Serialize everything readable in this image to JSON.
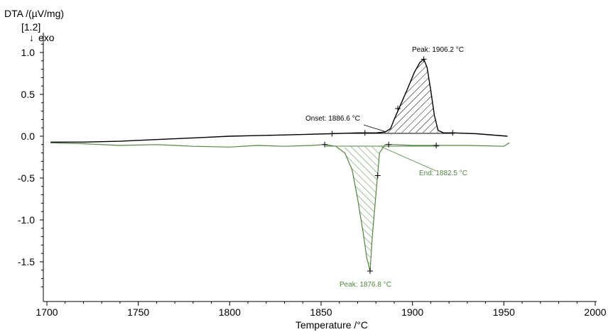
{
  "chart_data": {
    "type": "line",
    "xlabel": "Temperature /°C",
    "ylabel": "DTA /(µV/mg)",
    "y_marker": "[1.2]",
    "exo_label": "exo",
    "xlim": [
      1700,
      2000
    ],
    "ylim": [
      -1.9,
      1.2
    ],
    "x_ticks": [
      1700,
      1750,
      1800,
      1850,
      1900,
      1950,
      2000
    ],
    "x_tick_labels": [
      "1700",
      "1750",
      "1800",
      "1850",
      "1900",
      "1950",
      "2000"
    ],
    "y_ticks": [
      1.0,
      0.5,
      0.0,
      -0.5,
      -1.0,
      -1.5
    ],
    "y_tick_labels": [
      "1.0",
      "0.5",
      "0.0",
      "-0.5",
      "-1.0",
      "-1.5"
    ],
    "grid": false,
    "colors": {
      "heating": "#000000",
      "cooling": "#4e8a3a"
    },
    "series": [
      {
        "color": "#000000",
        "x": [
          1702,
          1720,
          1740,
          1760,
          1780,
          1800,
          1820,
          1840,
          1855,
          1870,
          1880,
          1885,
          1888,
          1890,
          1893,
          1897,
          1901,
          1904,
          1906.2,
          1908,
          1910,
          1912,
          1914,
          1917,
          1922,
          1935,
          1952
        ],
        "y": [
          -0.07,
          -0.07,
          -0.06,
          -0.04,
          -0.02,
          0.0,
          0.01,
          0.02,
          0.03,
          0.04,
          0.04,
          0.05,
          0.09,
          0.2,
          0.35,
          0.55,
          0.76,
          0.88,
          0.92,
          0.82,
          0.55,
          0.25,
          0.07,
          0.04,
          0.04,
          0.03,
          0.0
        ]
      },
      {
        "color": "#4e8a3a",
        "x": [
          1702,
          1720,
          1740,
          1760,
          1780,
          1800,
          1815,
          1830,
          1845,
          1852,
          1858,
          1863,
          1867,
          1870,
          1873,
          1875,
          1876.8,
          1878,
          1880,
          1882,
          1885,
          1890,
          1900,
          1913,
          1930,
          1950,
          1953
        ],
        "y": [
          -0.08,
          -0.09,
          -0.11,
          -0.1,
          -0.12,
          -0.13,
          -0.11,
          -0.12,
          -0.11,
          -0.1,
          -0.12,
          -0.2,
          -0.4,
          -0.75,
          -1.15,
          -1.45,
          -1.61,
          -1.2,
          -0.7,
          -0.2,
          -0.1,
          -0.1,
          -0.11,
          -0.11,
          -0.11,
          -0.12,
          -0.08
        ]
      }
    ],
    "annotations": [
      {
        "text": "Peak: 1906.2 °C",
        "color": "#000000"
      },
      {
        "text": "Onset: 1886.6 °C",
        "color": "#000000"
      },
      {
        "text": "End: 1882.5 °C",
        "color": "#4e8a3a"
      },
      {
        "text": "Peak: 1876.8 °C",
        "color": "#4e8a3a"
      }
    ]
  }
}
